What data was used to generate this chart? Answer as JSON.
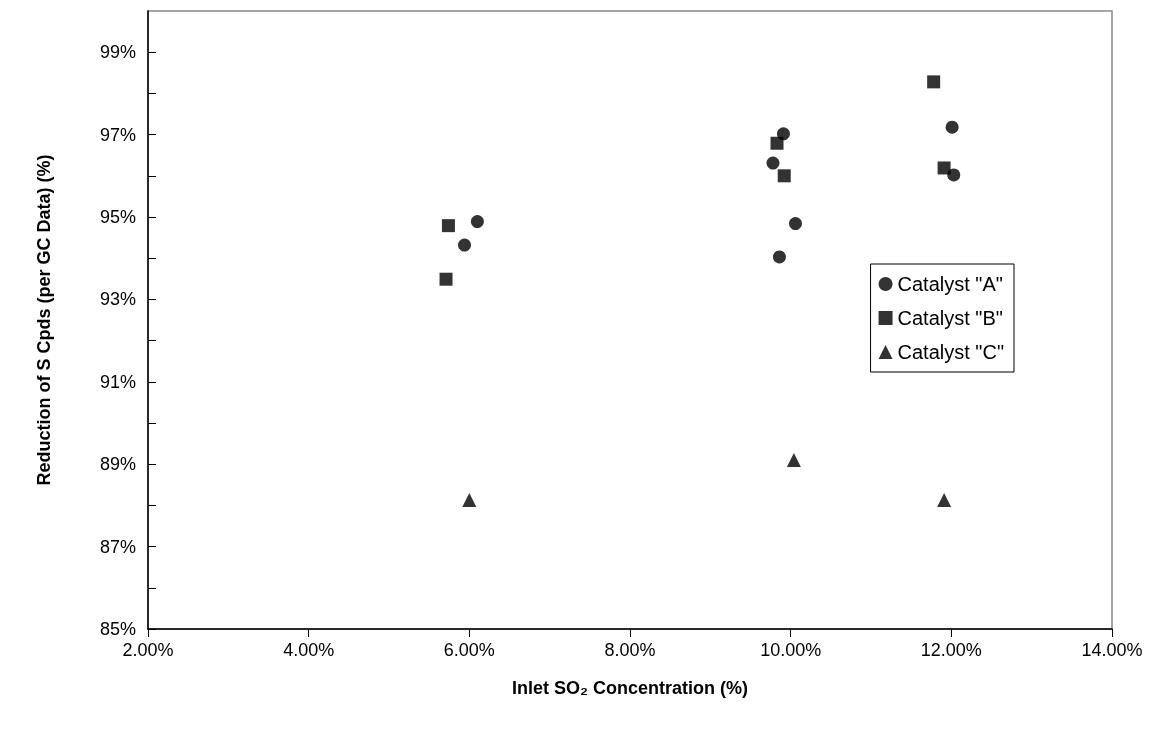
{
  "chart_data": {
    "type": "scatter",
    "xlabel": "Inlet SO₂ Concentration (%)",
    "ylabel": "Reduction of S Cpds (per GC Data) (%)",
    "xlim": [
      2,
      14
    ],
    "xticks": [
      {
        "value": 2,
        "label": "2.00%"
      },
      {
        "value": 4,
        "label": "4.00%"
      },
      {
        "value": 6,
        "label": "6.00%"
      },
      {
        "value": 8,
        "label": "8.00%"
      },
      {
        "value": 10,
        "label": "10.00%"
      },
      {
        "value": 12,
        "label": "12.00%"
      },
      {
        "value": 14,
        "label": "14.00%"
      }
    ],
    "ylim": [
      85,
      100
    ],
    "yticks": [
      {
        "value": 85,
        "label": "85%"
      },
      {
        "value": 86,
        "label": null
      },
      {
        "value": 87,
        "label": "87%"
      },
      {
        "value": 88,
        "label": null
      },
      {
        "value": 89,
        "label": "89%"
      },
      {
        "value": 90,
        "label": null
      },
      {
        "value": 91,
        "label": "91%"
      },
      {
        "value": 92,
        "label": null
      },
      {
        "value": 93,
        "label": "93%"
      },
      {
        "value": 94,
        "label": null
      },
      {
        "value": 95,
        "label": "95%"
      },
      {
        "value": 96,
        "label": null
      },
      {
        "value": 97,
        "label": "97%"
      },
      {
        "value": 98,
        "label": null
      },
      {
        "value": 99,
        "label": "99%"
      }
    ],
    "grid": false,
    "legend": "right",
    "series": [
      {
        "name": "Catalyst \"A\"",
        "color": "#000000",
        "marker": "circle",
        "x": [
          6.1,
          5.94,
          9.91,
          9.78,
          10.06,
          9.86,
          12.01,
          12.03
        ],
        "values": [
          94.89,
          94.32,
          97.02,
          96.31,
          94.84,
          94.03,
          97.18,
          96.02
        ]
      },
      {
        "name": "Catalyst \"B\"",
        "color": "#000000",
        "marker": "square",
        "x": [
          5.74,
          5.71,
          9.83,
          9.92,
          11.78,
          11.91
        ],
        "values": [
          94.79,
          93.49,
          96.79,
          96.0,
          98.28,
          96.19
        ]
      },
      {
        "name": "Catalyst \"C\"",
        "color": "#000000",
        "marker": "triangle",
        "x": [
          6.0,
          10.04,
          11.91
        ],
        "values": [
          88.13,
          89.1,
          88.13
        ]
      }
    ]
  }
}
